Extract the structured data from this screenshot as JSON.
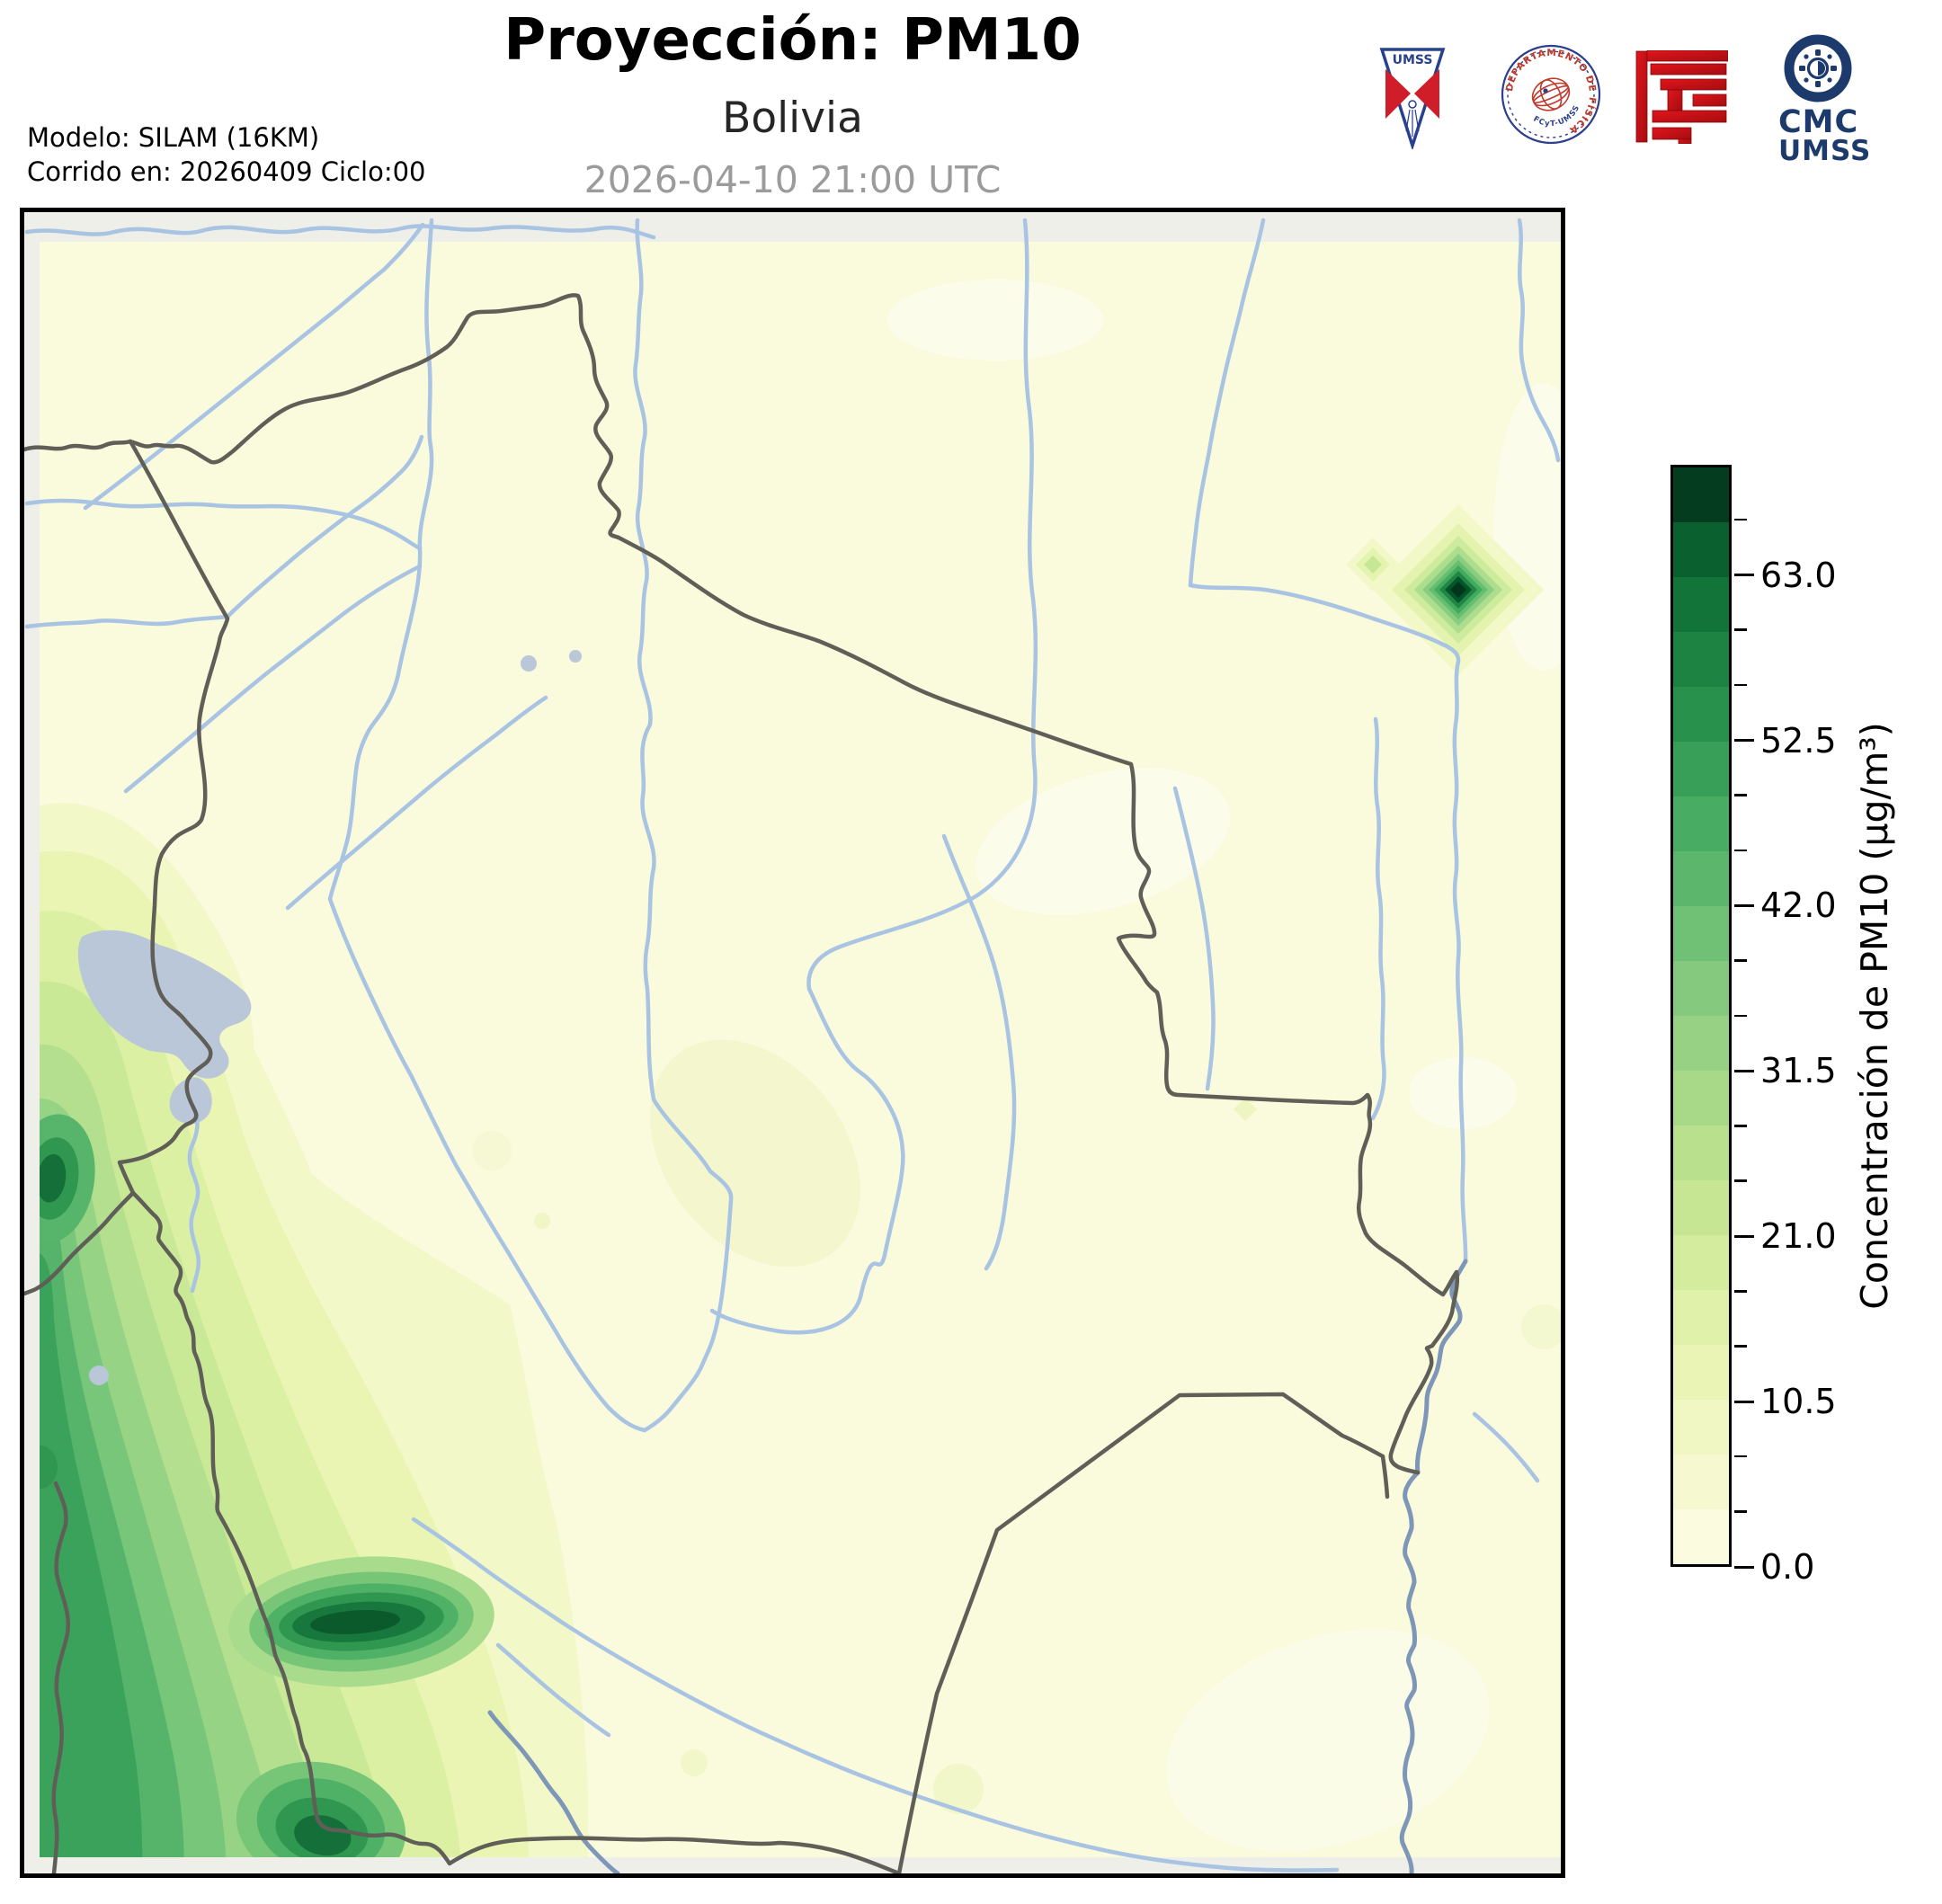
{
  "header": {
    "title": "Proyección: PM10",
    "subtitle": "Bolivia",
    "datetime": "2026-04-10 21:00 UTC",
    "model_line1": "Modelo: SILAM (16KM)",
    "model_line2": "Corrido en: 20260409 Ciclo:00"
  },
  "logos": {
    "umss_text": "UMSS",
    "fisica_text_top": "DEPARTAMENTO DE FÍSICA",
    "fisica_text_bottom": "FCyT-UMSS",
    "cmc_line1": "CMC",
    "cmc_line2": "UMSS"
  },
  "colorbar": {
    "label": "Concentración de PM10 (µg/m³)",
    "min": 0,
    "max": 70,
    "major_tick_values": [
      0,
      10.5,
      21,
      31.5,
      42,
      52.5,
      63
    ],
    "major_tick_labels": [
      "0.0",
      "10.5",
      "21.0",
      "31.5",
      "42.0",
      "52.5",
      "63.0"
    ],
    "minor_step": 3.5,
    "segment_colors": [
      "#fbfbdf",
      "#f6f9d0",
      "#f0f7c2",
      "#e9f4b5",
      "#e0f1a9",
      "#d4ec9d",
      "#c7e694",
      "#b8e08d",
      "#a8d988",
      "#97d184",
      "#84c97d",
      "#70c175",
      "#5cb76c",
      "#48ac62",
      "#379f57",
      "#28924d",
      "#1d8343",
      "#137439",
      "#0a612f",
      "#033c1e"
    ]
  },
  "map": {
    "background_color": "#fafadd",
    "out_of_domain_color": "#efefe9",
    "river_color": "#a9c3e2",
    "major_river_color": "#7e97b8",
    "border_color": "#5f5f58",
    "lake_color": "#b9c7d9",
    "hotspot_core_color": "#02351a",
    "high_concentration_regions": [
      "Andes occidentales (franja oeste)",
      "Foco puntual noreste"
    ]
  }
}
